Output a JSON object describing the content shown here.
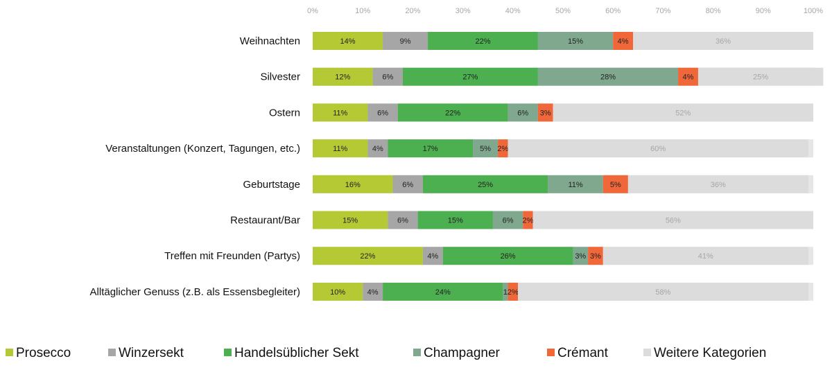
{
  "chart_data": {
    "type": "bar",
    "orientation": "horizontal",
    "stacked": true,
    "categories": [
      "Weihnachten",
      "Silvester",
      "Ostern",
      "Veranstaltungen (Konzert, Tagungen, etc.)",
      "Geburtstage",
      "Restaurant/Bar",
      "Treffen mit Freunden (Partys)",
      "Alltäglicher Genuss (z.B. als Essensbegleiter)"
    ],
    "series": [
      {
        "name": "Prosecco",
        "color": "#b5c935",
        "label_color": "#222222",
        "values": [
          14,
          12,
          11,
          11,
          16,
          15,
          22,
          10
        ]
      },
      {
        "name": "Winzersekt",
        "color": "#a6a6a6",
        "label_color": "#222222",
        "values": [
          9,
          6,
          6,
          4,
          6,
          6,
          4,
          4
        ]
      },
      {
        "name": "Handelsüblicher Sekt",
        "color": "#4caf50",
        "label_color": "#222222",
        "values": [
          22,
          27,
          22,
          17,
          25,
          15,
          26,
          24
        ]
      },
      {
        "name": "Champagner",
        "color": "#7fa88e",
        "label_color": "#222222",
        "values": [
          15,
          28,
          6,
          5,
          11,
          6,
          3,
          1
        ]
      },
      {
        "name": "Crémant",
        "color": "#f0673a",
        "label_color": "#222222",
        "values": [
          4,
          4,
          3,
          2,
          5,
          2,
          3,
          2
        ]
      },
      {
        "name": "Weitere Kategorien",
        "color": "#dcdcdc",
        "label_color": "#a6a6a6",
        "values": [
          36,
          25,
          52,
          60,
          36,
          56,
          41,
          58
        ]
      }
    ],
    "data_labels": [
      [
        "14%",
        "9%",
        "22%",
        "15%",
        "4%",
        "36%"
      ],
      [
        "12%",
        "6%",
        "27%",
        "28%",
        "4%",
        "25%"
      ],
      [
        "11%",
        "6%",
        "22%",
        "6%",
        "3%",
        "52%"
      ],
      [
        "11%",
        "4%",
        "17%",
        "5%",
        "2%",
        "60%"
      ],
      [
        "16%",
        "6%",
        "25%",
        "11%",
        "5%",
        "36%"
      ],
      [
        "15%",
        "6%",
        "15%",
        "6%",
        "2%",
        "56%"
      ],
      [
        "22%",
        "4%",
        "26%",
        "3%",
        "3%",
        "41%"
      ],
      [
        "10%",
        "4%",
        "24%",
        "1",
        "2%",
        "58%"
      ]
    ],
    "xlim": [
      0,
      100
    ],
    "x_ticks": [
      "0%",
      "10%",
      "20%",
      "30%",
      "40%",
      "50%",
      "60%",
      "70%",
      "80%",
      "90%",
      "100%"
    ],
    "title": "",
    "xlabel": "",
    "ylabel": "",
    "grid": false,
    "legend": "bottom"
  }
}
